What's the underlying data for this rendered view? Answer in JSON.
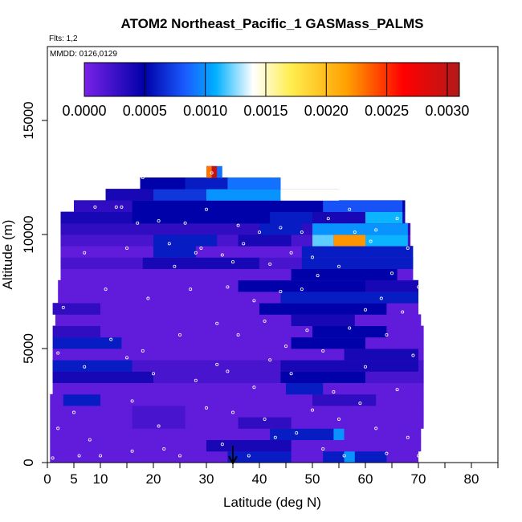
{
  "chart_data": {
    "type": "heatmap",
    "title": "ATOM2 Northeast_Pacific_1 GASMass_PALMS",
    "annotations": [
      "Flts: 1,2",
      "MMDD: 0126,0129"
    ],
    "xlabel": "Latitude (deg N)",
    "ylabel": "Altitude (m)",
    "xlim": [
      0,
      85
    ],
    "ylim": [
      0,
      17500
    ],
    "x_ticks": [
      0,
      5,
      10,
      20,
      30,
      40,
      50,
      60,
      70,
      80
    ],
    "x_minor_ticks": [
      15,
      25,
      35,
      45,
      55,
      65,
      75,
      85
    ],
    "y_ticks": [
      0,
      5000,
      10000,
      15000
    ],
    "grid": false,
    "legend": "colorbar-top-inside",
    "colorbar": {
      "min": 0.0,
      "max": 0.0031,
      "ticks": [
        "0.0000",
        "0.0005",
        "0.0010",
        "0.0015",
        "0.0020",
        "0.0025",
        "0.0030"
      ],
      "tick_values": [
        0,
        0.0005,
        0.001,
        0.0015,
        0.002,
        0.0025,
        0.003
      ],
      "colors": [
        "#7a22e8",
        "#0000a8",
        "#1a5cff",
        "#00b0ff",
        "#ffffff",
        "#ffee50",
        "#ffa000",
        "#ff0000",
        "#b31a1a"
      ],
      "color_stops": [
        0,
        0.16,
        0.27,
        0.35,
        0.45,
        0.55,
        0.7,
        0.85,
        1.0
      ]
    },
    "marker": {
      "x": 35,
      "label": "arrow"
    },
    "rows": [
      {
        "y0": 0,
        "y1": 500,
        "x0": 0.5,
        "x1": 70,
        "v": 0.0001,
        "spots": [
          [
            34,
            46,
            0.0006
          ],
          [
            52,
            64,
            0.0006
          ],
          [
            56,
            58,
            0.001
          ]
        ]
      },
      {
        "y0": 500,
        "y1": 1000,
        "x0": 0.5,
        "x1": 70.5,
        "v": 0.0001,
        "spots": [
          [
            30,
            46,
            0.0004
          ]
        ]
      },
      {
        "y0": 1000,
        "y1": 1500,
        "x0": 0.5,
        "x1": 70.5,
        "v": 0.0001,
        "spots": [
          [
            42,
            56,
            0.0006
          ],
          [
            54,
            56,
            0.001
          ]
        ]
      },
      {
        "y0": 1500,
        "y1": 2000,
        "x0": 0.5,
        "x1": 71,
        "v": 0.0001,
        "spots": [
          [
            16,
            26,
            0.0002
          ],
          [
            36,
            46,
            0.0003
          ]
        ]
      },
      {
        "y0": 2000,
        "y1": 2500,
        "x0": 0.5,
        "x1": 71,
        "v": 0.0001,
        "spots": [
          [
            16,
            26,
            0.0002
          ]
        ]
      },
      {
        "y0": 2500,
        "y1": 3000,
        "x0": 0.5,
        "x1": 71,
        "v": 0.0001,
        "spots": [
          [
            3,
            10,
            0.0006
          ],
          [
            50,
            62,
            0.0003
          ]
        ]
      },
      {
        "y0": 3000,
        "y1": 3500,
        "x0": 1,
        "x1": 71,
        "v": 0.0001,
        "spots": [
          [
            45,
            52,
            0.0006
          ]
        ]
      },
      {
        "y0": 3500,
        "y1": 4000,
        "x0": 1,
        "x1": 71,
        "v": 0.0002,
        "spots": [
          [
            1,
            20,
            0.0004
          ],
          [
            44,
            60,
            0.0005
          ]
        ]
      },
      {
        "y0": 4000,
        "y1": 4500,
        "x0": 1,
        "x1": 71,
        "v": 0.0002,
        "spots": [
          [
            1,
            16,
            0.0006
          ],
          [
            44,
            70,
            0.0004
          ]
        ]
      },
      {
        "y0": 4500,
        "y1": 5000,
        "x0": 1,
        "x1": 71,
        "v": 0.0001,
        "spots": [
          [
            56,
            70,
            0.0004
          ]
        ]
      },
      {
        "y0": 5000,
        "y1": 5500,
        "x0": 1.5,
        "x1": 71,
        "v": 0.0001,
        "spots": [
          [
            1,
            14,
            0.0006
          ],
          [
            46,
            60,
            0.0005
          ]
        ]
      },
      {
        "y0": 5500,
        "y1": 6000,
        "x0": 1.5,
        "x1": 71,
        "v": 0.0001,
        "spots": [
          [
            1,
            10,
            0.0003
          ],
          [
            50,
            64,
            0.0005
          ]
        ]
      },
      {
        "y0": 6000,
        "y1": 6500,
        "x0": 1.5,
        "x1": 70.5,
        "v": 0.0001,
        "spots": [
          [
            46,
            58,
            0.0004
          ]
        ]
      },
      {
        "y0": 6500,
        "y1": 7000,
        "x0": 2,
        "x1": 70,
        "v": 0.0001,
        "spots": [
          [
            1,
            10,
            0.0003
          ],
          [
            40,
            64,
            0.0005
          ]
        ]
      },
      {
        "y0": 7000,
        "y1": 7500,
        "x0": 2,
        "x1": 70,
        "v": 0.0001,
        "spots": [
          [
            44,
            70,
            0.0006
          ]
        ]
      },
      {
        "y0": 7500,
        "y1": 8000,
        "x0": 2,
        "x1": 69.5,
        "v": 0.0001,
        "spots": [
          [
            36,
            60,
            0.0005
          ],
          [
            60,
            70,
            0.0004
          ]
        ]
      },
      {
        "y0": 8000,
        "y1": 8500,
        "x0": 2.5,
        "x1": 69,
        "v": 0.0001,
        "spots": [
          [
            46,
            66,
            0.0005
          ]
        ]
      },
      {
        "y0": 8500,
        "y1": 9000,
        "x0": 2.5,
        "x1": 69,
        "v": 0.0002,
        "spots": [
          [
            18,
            40,
            0.0004
          ],
          [
            48,
            69,
            0.0006
          ]
        ]
      },
      {
        "y0": 9000,
        "y1": 9500,
        "x0": 2.5,
        "x1": 68.5,
        "v": 0.0001,
        "spots": [
          [
            20,
            28,
            0.0006
          ],
          [
            48,
            69,
            0.0006
          ]
        ]
      },
      {
        "y0": 9500,
        "y1": 10000,
        "x0": 2.5,
        "x1": 68.5,
        "v": 0.0002,
        "spots": [
          [
            20,
            32,
            0.0006
          ],
          [
            36,
            46,
            0.0004
          ],
          [
            50,
            54,
            0.0012
          ],
          [
            54,
            60,
            0.0022
          ],
          [
            60,
            68,
            0.0011
          ]
        ]
      },
      {
        "y0": 10000,
        "y1": 10500,
        "x0": 2.5,
        "x1": 68.5,
        "v": 0.0003,
        "spots": [
          [
            40,
            48,
            0.0006
          ],
          [
            50,
            68,
            0.001
          ]
        ]
      },
      {
        "y0": 10500,
        "y1": 11000,
        "x0": 2.5,
        "x1": 67.5,
        "v": 0.0004,
        "spots": [
          [
            16,
            42,
            0.0005
          ],
          [
            42,
            50,
            0.0006
          ],
          [
            60,
            67,
            0.0011
          ]
        ]
      },
      {
        "y0": 11000,
        "y1": 11500,
        "x0": 5,
        "x1": 67.5,
        "v": 0.0005,
        "spots": [
          [
            5,
            16,
            0.0003
          ],
          [
            34,
            52,
            0.0005
          ],
          [
            52,
            67,
            0.0008
          ]
        ]
      },
      {
        "y0": 11500,
        "y1": 12000,
        "x0": 11,
        "x1": 55,
        "v": 0.0007,
        "spots": [
          [
            11,
            20,
            0.0004
          ],
          [
            30,
            44,
            0.001
          ],
          [
            44,
            55,
            0.0014
          ]
        ]
      },
      {
        "y0": 12000,
        "y1": 12500,
        "x0": 17.5,
        "x1": 44,
        "v": 0.0006,
        "spots": [
          [
            17.5,
            26,
            0.0005
          ],
          [
            34,
            44,
            0.0009
          ]
        ]
      },
      {
        "y0": 12500,
        "y1": 13000,
        "x0": 30,
        "x1": 33,
        "v": 0.0009,
        "spots": [
          [
            30,
            31,
            0.0023
          ],
          [
            31,
            32,
            0.003
          ]
        ]
      }
    ],
    "points": [
      [
        1,
        200
      ],
      [
        2,
        1500
      ],
      [
        2,
        4800
      ],
      [
        3,
        6800
      ],
      [
        5,
        2200
      ],
      [
        6,
        300
      ],
      [
        7,
        4200
      ],
      [
        7,
        9200
      ],
      [
        8,
        1000
      ],
      [
        9,
        11200
      ],
      [
        10,
        300
      ],
      [
        11,
        7600
      ],
      [
        12,
        5400
      ],
      [
        13,
        11200
      ],
      [
        14,
        11200
      ],
      [
        15,
        4600
      ],
      [
        15,
        9400
      ],
      [
        16,
        2700
      ],
      [
        16,
        500
      ],
      [
        17,
        10500
      ],
      [
        18,
        4900
      ],
      [
        18,
        12500
      ],
      [
        19,
        7200
      ],
      [
        20,
        3900
      ],
      [
        21,
        10600
      ],
      [
        21,
        1600
      ],
      [
        22,
        600
      ],
      [
        23,
        9600
      ],
      [
        24,
        8600
      ],
      [
        25,
        5600
      ],
      [
        25,
        300
      ],
      [
        26,
        10500
      ],
      [
        27,
        7600
      ],
      [
        28,
        9200
      ],
      [
        28,
        3600
      ],
      [
        29,
        9400
      ],
      [
        30,
        2400
      ],
      [
        30,
        11100
      ],
      [
        31,
        12700
      ],
      [
        32,
        6100
      ],
      [
        32,
        4300
      ],
      [
        33,
        9100
      ],
      [
        33,
        800
      ],
      [
        34,
        7700
      ],
      [
        34,
        4000
      ],
      [
        35,
        8800
      ],
      [
        35,
        2200
      ],
      [
        36,
        10400
      ],
      [
        36,
        5600
      ],
      [
        37,
        9600
      ],
      [
        38,
        300
      ],
      [
        39,
        7100
      ],
      [
        39,
        3300
      ],
      [
        40,
        10100
      ],
      [
        41,
        6200
      ],
      [
        41,
        1900
      ],
      [
        42,
        8700
      ],
      [
        42,
        4500
      ],
      [
        43,
        1100
      ],
      [
        44,
        7500
      ],
      [
        44,
        10300
      ],
      [
        45,
        5100
      ],
      [
        46,
        9200
      ],
      [
        46,
        3900
      ],
      [
        47,
        1300
      ],
      [
        48,
        7600
      ],
      [
        48,
        10100
      ],
      [
        49,
        5800
      ],
      [
        50,
        9000
      ],
      [
        50,
        2300
      ],
      [
        51,
        8200
      ],
      [
        52,
        4900
      ],
      [
        52,
        600
      ],
      [
        53,
        10700
      ],
      [
        54,
        3100
      ],
      [
        55,
        1900
      ],
      [
        55,
        8600
      ],
      [
        56,
        300
      ],
      [
        57,
        5900
      ],
      [
        57,
        11100
      ],
      [
        58,
        10100
      ],
      [
        59,
        2600
      ],
      [
        60,
        6700
      ],
      [
        60,
        4200
      ],
      [
        61,
        9700
      ],
      [
        62,
        1500
      ],
      [
        62,
        10200
      ],
      [
        63,
        7200
      ],
      [
        64,
        5600
      ],
      [
        64,
        400
      ],
      [
        65,
        8300
      ],
      [
        66,
        3200
      ],
      [
        66,
        10700
      ],
      [
        67,
        6600
      ],
      [
        68,
        1100
      ],
      [
        68,
        9400
      ],
      [
        69,
        4700
      ],
      [
        70,
        300
      ],
      [
        70,
        7700
      ]
    ]
  }
}
